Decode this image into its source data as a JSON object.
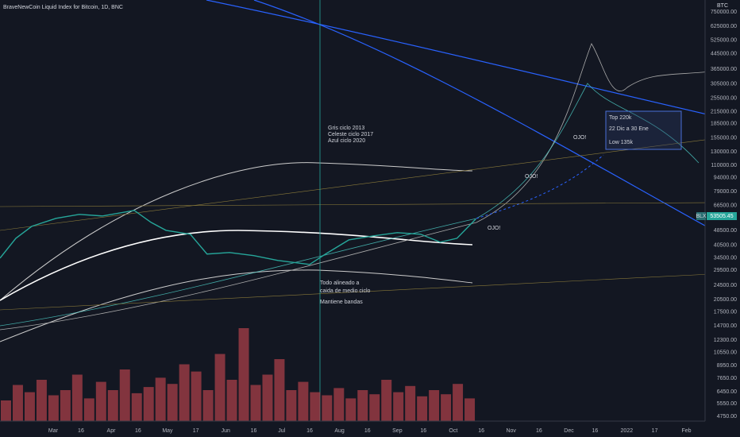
{
  "chart_data": {
    "type": "line",
    "title": "BraveNewCoin Liquid Index for Bitcoin, 1D, BNC",
    "currency": "BTC",
    "symbol": "BLX",
    "last_price": 53505.45,
    "log_scale": true,
    "grid": true,
    "ylim": [
      4475,
      870000
    ],
    "yticks": [
      {
        "value": 750000,
        "label": "750000.00"
      },
      {
        "value": 625000,
        "label": "625000.00"
      },
      {
        "value": 525000,
        "label": "525000.00"
      },
      {
        "value": 445000,
        "label": "445000.00"
      },
      {
        "value": 365000,
        "label": "365000.00"
      },
      {
        "value": 305000,
        "label": "305000.00"
      },
      {
        "value": 255000,
        "label": "255000.00"
      },
      {
        "value": 215000,
        "label": "215000.00"
      },
      {
        "value": 185000,
        "label": "185000.00"
      },
      {
        "value": 155000,
        "label": "155000.00"
      },
      {
        "value": 130000,
        "label": "130000.00"
      },
      {
        "value": 110000,
        "label": "110000.00"
      },
      {
        "value": 94000,
        "label": "94000.00"
      },
      {
        "value": 79000,
        "label": "79000.00"
      },
      {
        "value": 66500,
        "label": "66500.00"
      },
      {
        "value": 48500,
        "label": "48500.00"
      },
      {
        "value": 40500,
        "label": "40500.00"
      },
      {
        "value": 34500,
        "label": "34500.00"
      },
      {
        "value": 29500,
        "label": "29500.00"
      },
      {
        "value": 24500,
        "label": "24500.00"
      },
      {
        "value": 20500,
        "label": "20500.00"
      },
      {
        "value": 17500,
        "label": "17500.00"
      },
      {
        "value": 14700,
        "label": "14700.00"
      },
      {
        "value": 12300,
        "label": "12300.00"
      },
      {
        "value": 10550,
        "label": "10550.00"
      },
      {
        "value": 8950,
        "label": "8950.00"
      },
      {
        "value": 7650,
        "label": "7650.00"
      },
      {
        "value": 6450,
        "label": "6450.00"
      },
      {
        "value": 5550,
        "label": "5550.00"
      },
      {
        "value": 4750,
        "label": "4750.00"
      }
    ],
    "xlim": [
      0,
      378
    ],
    "xticks": [
      {
        "value": 28.5,
        "label": "Mar"
      },
      {
        "value": 43.4,
        "label": "16"
      },
      {
        "value": 59.6,
        "label": "Apr"
      },
      {
        "value": 74,
        "label": "16"
      },
      {
        "value": 89.8,
        "label": "May"
      },
      {
        "value": 105,
        "label": "17"
      },
      {
        "value": 121,
        "label": "Jun"
      },
      {
        "value": 136,
        "label": "16"
      },
      {
        "value": 151,
        "label": "Jul"
      },
      {
        "value": 166,
        "label": "16"
      },
      {
        "value": 182,
        "label": "Aug"
      },
      {
        "value": 197,
        "label": "16"
      },
      {
        "value": 213,
        "label": "Sep"
      },
      {
        "value": 227,
        "label": "16"
      },
      {
        "value": 243,
        "label": "Oct"
      },
      {
        "value": 258,
        "label": "16"
      },
      {
        "value": 274,
        "label": "Nov"
      },
      {
        "value": 289,
        "label": "16"
      },
      {
        "value": 305,
        "label": "Dec"
      },
      {
        "value": 319,
        "label": "16"
      },
      {
        "value": 336,
        "label": "2022"
      },
      {
        "value": 351,
        "label": "17"
      },
      {
        "value": 368,
        "label": "Feb"
      }
    ],
    "x": [
      0,
      8.5,
      17,
      30,
      42.5,
      55,
      72,
      81,
      89,
      102,
      111,
      123,
      136,
      149,
      166,
      174.5,
      187,
      200,
      213,
      225.5,
      236,
      245,
      255
    ],
    "series": [
      {
        "color": "#26a69a",
        "values": [
          34400,
          44100,
          51200,
          56600,
          59500,
          58300,
          62500,
          53800,
          48700,
          46400,
          36200,
          36900,
          35500,
          33400,
          31800,
          36200,
          43200,
          45400,
          47300,
          46400,
          42000,
          44100,
          56000
        ]
      }
    ],
    "volume": {
      "color": "#b2424a",
      "vlim": [
        0,
        100
      ],
      "values": [
        20,
        35,
        28,
        40,
        25,
        30,
        45,
        22,
        38,
        30,
        50,
        27,
        33,
        42,
        36,
        55,
        48,
        30,
        65,
        40,
        90,
        35,
        45,
        60,
        30,
        38,
        28,
        25,
        32,
        22,
        30,
        26,
        40,
        28,
        34,
        24,
        30,
        26,
        36,
        22
      ]
    },
    "annotations": [
      {
        "text": "Gris ciclo 2013"
      },
      {
        "text": "Celeste ciclo 2017"
      },
      {
        "text": "Azul ciclo 2020"
      },
      {
        "text": "Todo alineado a"
      },
      {
        "text": "caida de medio ciclo"
      },
      {
        "text": "Mantiene bandas"
      },
      {
        "text": "OJO!"
      },
      {
        "text": "OJO!"
      },
      {
        "text": "OJO!"
      },
      {
        "text": "Top 220k"
      },
      {
        "text": "22 Dic a 30 Ene"
      },
      {
        "text": "Low 135k"
      }
    ]
  }
}
